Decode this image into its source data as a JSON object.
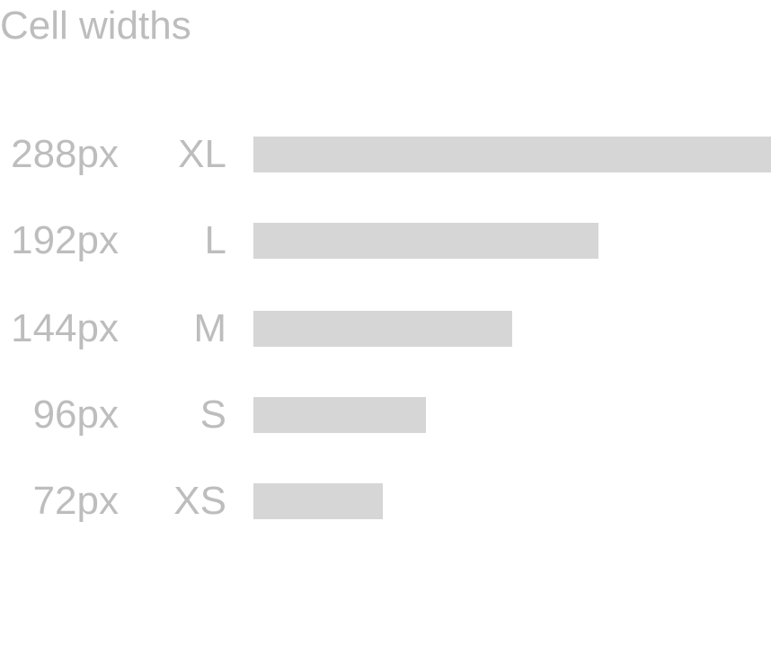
{
  "title": "Cell widths",
  "bar_color": "#d6d6d6",
  "text_color": "#bdbdbd",
  "rows": [
    {
      "px_label": "288px",
      "size_label": "XL",
      "width_value": 288
    },
    {
      "px_label": "192px",
      "size_label": "L",
      "width_value": 192
    },
    {
      "px_label": "144px",
      "size_label": "M",
      "width_value": 144
    },
    {
      "px_label": "96px",
      "size_label": "S",
      "width_value": 96
    },
    {
      "px_label": "72px",
      "size_label": "XS",
      "width_value": 72
    }
  ]
}
